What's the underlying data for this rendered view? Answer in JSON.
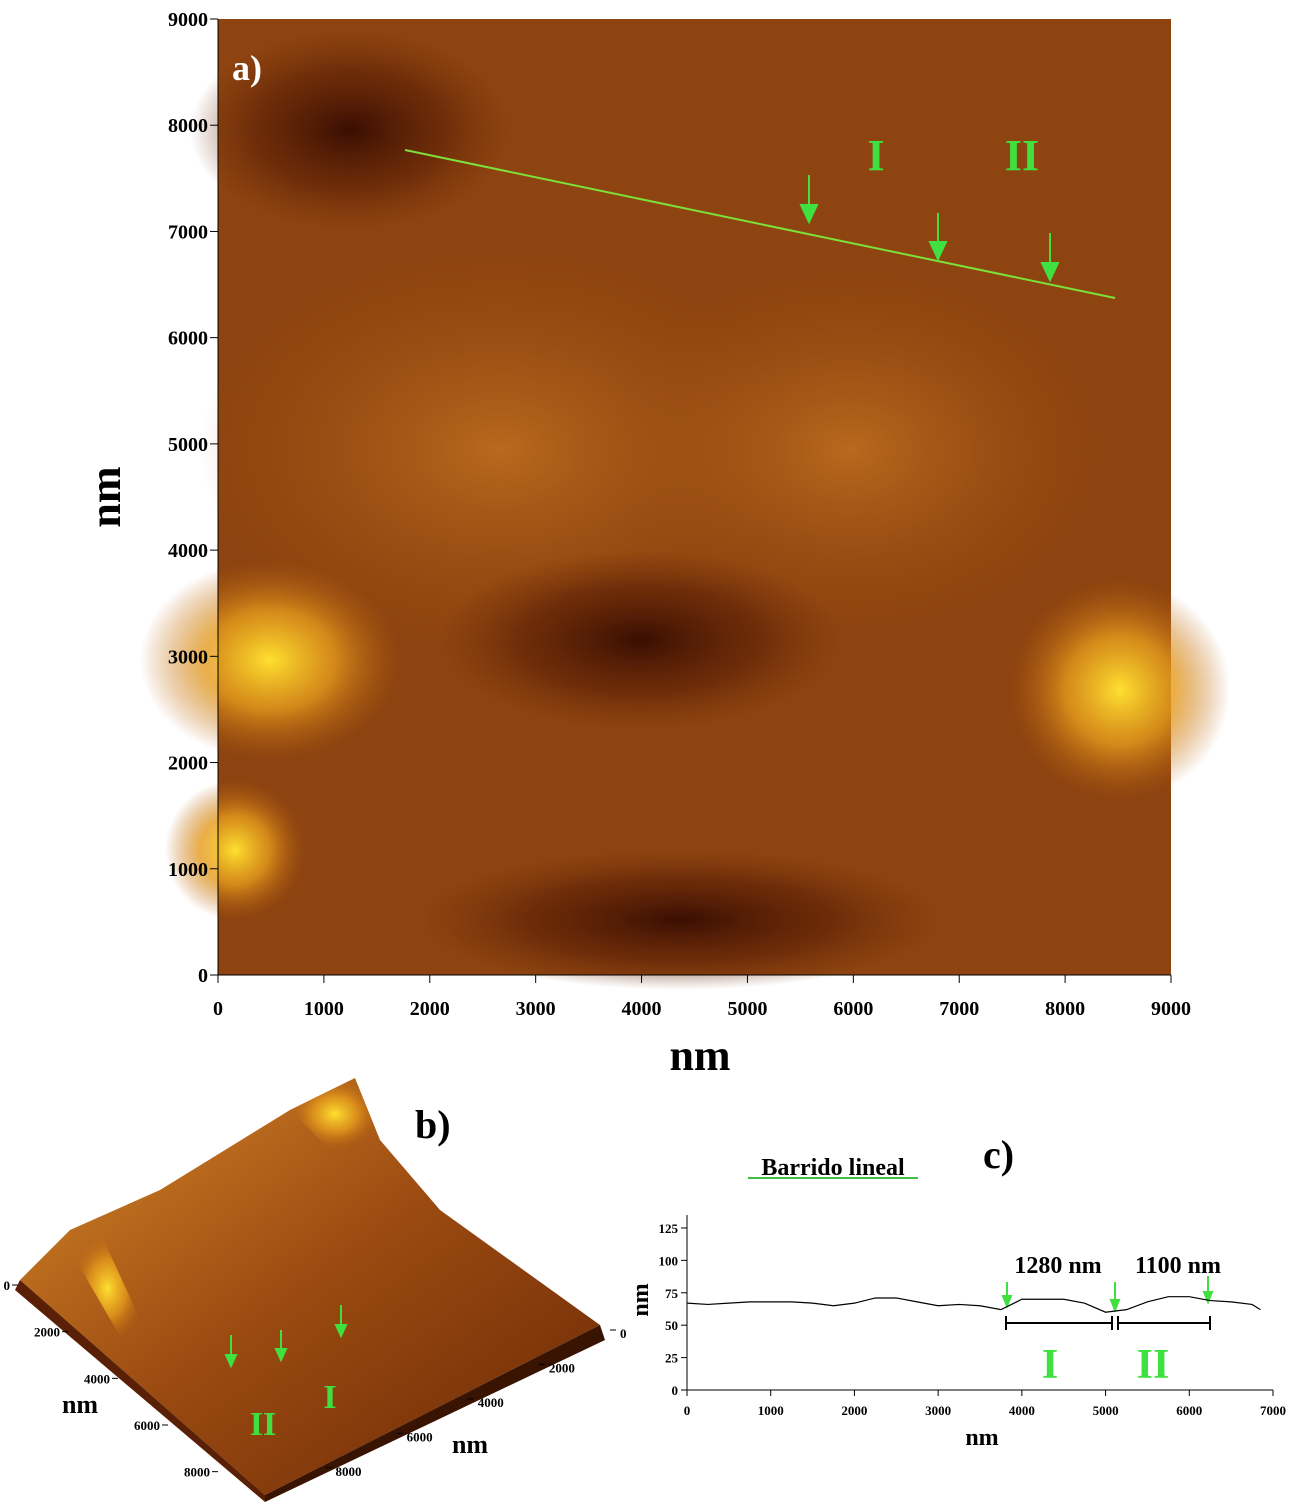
{
  "chart_data": [
    {
      "type": "image",
      "panel_label": "a)",
      "xlabel": "nm",
      "ylabel": "nm",
      "xlim": [
        0,
        9000
      ],
      "ylim": [
        0,
        9000
      ],
      "xticks": [
        0,
        1000,
        2000,
        3000,
        4000,
        5000,
        6000,
        7000,
        8000,
        9000
      ],
      "yticks": [
        0,
        1000,
        2000,
        3000,
        4000,
        5000,
        6000,
        7000,
        8000,
        9000
      ],
      "annotations": [
        "I",
        "II"
      ]
    },
    {
      "type": "surface",
      "panel_label": "b)",
      "xlabel": "nm",
      "ylabel": "nm",
      "xlim": [
        0,
        9000
      ],
      "ylim": [
        0,
        9000
      ],
      "xticks": [
        0,
        2000,
        4000,
        6000,
        8000
      ],
      "yticks": [
        0,
        2000,
        4000,
        6000,
        8000
      ],
      "annotations": [
        "I",
        "II"
      ]
    },
    {
      "type": "line",
      "panel_label": "c)",
      "title": "Barrido lineal",
      "xlabel": "nm",
      "ylabel": "nm",
      "xlim": [
        0,
        7000
      ],
      "ylim": [
        0,
        135
      ],
      "xticks": [
        0,
        1000,
        2000,
        3000,
        4000,
        5000,
        6000,
        7000
      ],
      "yticks": [
        0,
        25,
        50,
        75,
        100,
        125
      ],
      "x": [
        0,
        250,
        500,
        750,
        1000,
        1250,
        1500,
        1750,
        2000,
        2250,
        2500,
        2750,
        3000,
        3250,
        3500,
        3750,
        4000,
        4250,
        4500,
        4750,
        5000,
        5250,
        5500,
        5750,
        6000,
        6250,
        6500,
        6750,
        6850
      ],
      "series": [
        {
          "color": "#000000",
          "values": [
            67,
            66,
            67,
            68,
            68,
            68,
            67,
            65,
            67,
            71,
            71,
            68,
            65,
            66,
            65,
            62,
            70,
            70,
            70,
            67,
            60,
            62,
            68,
            72,
            72,
            69,
            68,
            66,
            62
          ]
        }
      ],
      "annotations": [
        "1280 nm",
        "1100 nm",
        "I",
        "II"
      ]
    }
  ]
}
